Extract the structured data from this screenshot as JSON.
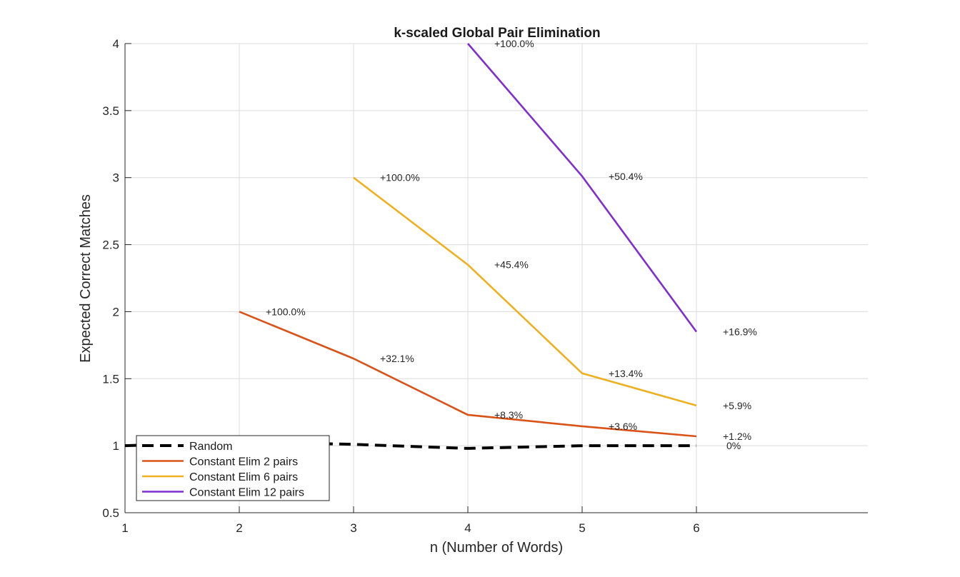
{
  "chart_data": {
    "type": "line",
    "title": "k-scaled Global Pair Elimination",
    "xlabel": "n (Number of Words)",
    "ylabel": "Expected Correct Matches",
    "xlim": [
      1,
      7.5
    ],
    "ylim": [
      0.5,
      4
    ],
    "xticks": [
      1,
      2,
      3,
      4,
      5,
      6
    ],
    "yticks": [
      0.5,
      1,
      1.5,
      2,
      2.5,
      3,
      3.5,
      4
    ],
    "ytick_labels": [
      "0.5",
      "1",
      "1.5",
      "2",
      "2.5",
      "3",
      "3.5",
      "4"
    ],
    "grid": true,
    "legend_location": "bottom-left",
    "series": [
      {
        "name": "Random",
        "color": "#000000",
        "dashed": true,
        "x": [
          1,
          2,
          3,
          4,
          5,
          6
        ],
        "y": [
          1.0,
          1.03,
          1.01,
          0.98,
          1.0,
          1.0
        ]
      },
      {
        "name": "Constant Elim 2 pairs",
        "color": "#D95319",
        "dashed": false,
        "x": [
          2,
          3,
          4,
          5,
          6
        ],
        "y": [
          2.0,
          1.65,
          1.23,
          1.145,
          1.07
        ],
        "labels": [
          "+100.0%",
          "+32.1%",
          "+8.3%",
          "+3.6%",
          "+1.2%"
        ]
      },
      {
        "name": "Constant Elim 6 pairs",
        "color": "#EDB120",
        "dashed": false,
        "x": [
          3,
          4,
          5,
          6
        ],
        "y": [
          3.0,
          2.35,
          1.54,
          1.3
        ],
        "labels": [
          "+100.0%",
          "+45.4%",
          "+13.4%",
          "+5.9%"
        ]
      },
      {
        "name": "Constant Elim 12 pairs",
        "color": "#7E2FCE",
        "dashed": false,
        "x": [
          4,
          5,
          6
        ],
        "y": [
          4.0,
          3.01,
          1.85
        ],
        "labels": [
          "+100.0%",
          "+50.4%",
          "+16.9%"
        ]
      }
    ],
    "extra_annotations": [
      {
        "x": 6,
        "y": 1.0,
        "text": "0%"
      }
    ]
  }
}
